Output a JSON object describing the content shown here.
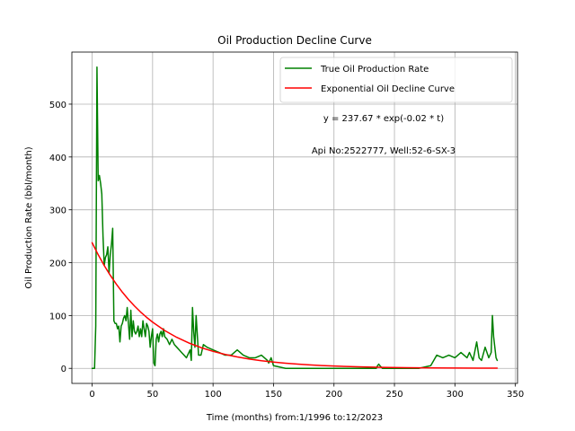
{
  "chart_data": {
    "type": "line",
    "title": "Oil Production Decline Curve",
    "xlabel": "Time (months) from:1/1996 to:12/2023",
    "ylabel": "Oil Production Rate (bbl/month)",
    "xlim": [
      -16.75,
      351.75
    ],
    "ylim": [
      -28.5,
      598.5
    ],
    "xticks": [
      0,
      50,
      100,
      150,
      200,
      250,
      300,
      350
    ],
    "yticks": [
      0,
      100,
      200,
      300,
      400,
      500
    ],
    "grid": true,
    "legend_position": "top-right",
    "annotations": [
      "y = 237.67 * exp(-0.02 * t)",
      "Api No:2522777, Well:52-6-SX-3"
    ],
    "series": [
      {
        "name": "True Oil Production Rate",
        "color": "#008000",
        "x": [
          0,
          1,
          2,
          3,
          4,
          5,
          6,
          7,
          8,
          9,
          10,
          11,
          12,
          13,
          14,
          15,
          16,
          17,
          18,
          19,
          20,
          21,
          22,
          23,
          24,
          25,
          26,
          27,
          28,
          29,
          30,
          31,
          32,
          33,
          34,
          35,
          36,
          37,
          38,
          39,
          40,
          41,
          42,
          43,
          44,
          45,
          46,
          47,
          48,
          49,
          50,
          51,
          52,
          53,
          54,
          55,
          56,
          57,
          58,
          59,
          60,
          62,
          64,
          66,
          68,
          70,
          72,
          74,
          76,
          78,
          80,
          81,
          82,
          83,
          84,
          85,
          86,
          88,
          90,
          92,
          95,
          100,
          105,
          110,
          115,
          120,
          125,
          130,
          135,
          140,
          145,
          146,
          148,
          150,
          160,
          180,
          200,
          220,
          230,
          235,
          236,
          237,
          238,
          240,
          250,
          270,
          280,
          285,
          290,
          295,
          300,
          305,
          310,
          312,
          315,
          318,
          320,
          322,
          325,
          328,
          330,
          331,
          332,
          333,
          334,
          335
        ],
        "values": [
          0,
          0,
          0,
          80,
          570,
          355,
          365,
          350,
          330,
          250,
          195,
          210,
          215,
          230,
          180,
          215,
          235,
          265,
          90,
          85,
          85,
          75,
          80,
          50,
          80,
          85,
          95,
          100,
          90,
          115,
          85,
          55,
          110,
          60,
          90,
          70,
          65,
          70,
          80,
          60,
          75,
          60,
          90,
          75,
          60,
          85,
          80,
          70,
          40,
          60,
          75,
          10,
          5,
          55,
          65,
          50,
          65,
          70,
          60,
          75,
          60,
          55,
          45,
          55,
          45,
          40,
          35,
          30,
          25,
          20,
          30,
          35,
          15,
          115,
          70,
          40,
          100,
          25,
          25,
          45,
          40,
          35,
          30,
          25,
          25,
          35,
          25,
          20,
          20,
          25,
          15,
          10,
          20,
          5,
          0,
          0,
          0,
          0,
          0,
          0,
          5,
          8,
          5,
          0,
          0,
          0,
          5,
          25,
          20,
          25,
          20,
          30,
          20,
          30,
          15,
          50,
          20,
          15,
          40,
          20,
          30,
          100,
          60,
          40,
          20,
          15
        ]
      },
      {
        "name": "Exponential Oil Decline Curve",
        "color": "#ff0000",
        "x": [
          0,
          5,
          10,
          15,
          20,
          25,
          30,
          35,
          40,
          45,
          50,
          60,
          70,
          80,
          90,
          100,
          110,
          120,
          130,
          140,
          150,
          160,
          170,
          180,
          190,
          200,
          220,
          240,
          260,
          280,
          300,
          320,
          335
        ],
        "values": [
          237.67,
          215.05,
          194.58,
          176.07,
          159.31,
          144.15,
          130.43,
          118.02,
          106.79,
          96.63,
          87.43,
          71.58,
          58.61,
          47.98,
          39.28,
          32.16,
          26.33,
          21.56,
          17.65,
          14.45,
          11.83,
          9.69,
          7.93,
          6.49,
          5.32,
          4.35,
          2.92,
          1.95,
          1.31,
          0.88,
          0.59,
          0.39,
          0.29
        ]
      }
    ]
  }
}
